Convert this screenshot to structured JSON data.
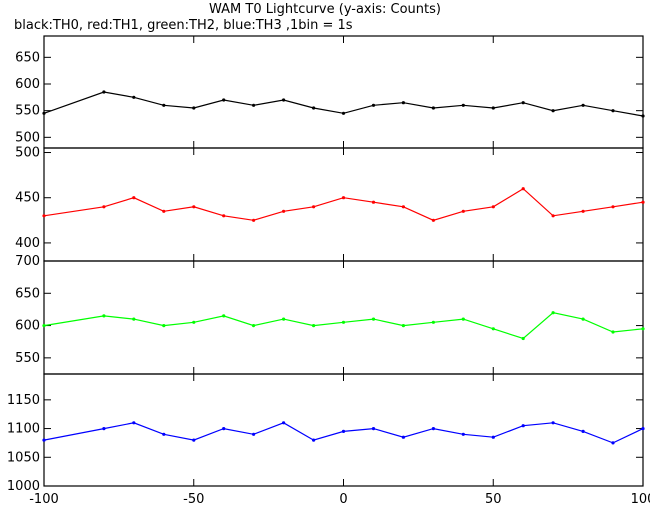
{
  "chart_data": {
    "type": "line",
    "title": "WAM T0 Lightcurve (y-axis: Counts)",
    "subtitle": "black:TH0, red:TH1, green:TH2, blue:TH3 ,1bin = 1s",
    "x_range": [
      -100,
      100
    ],
    "x_ticks": [
      -100,
      -50,
      0,
      50,
      100
    ],
    "series": [
      {
        "color": "#000000",
        "ylim": [
          480,
          690
        ],
        "y_ticks": [
          500,
          550,
          600,
          650
        ],
        "x": [
          -100,
          -80,
          -70,
          -60,
          -50,
          -40,
          -30,
          -20,
          -10,
          0,
          10,
          20,
          30,
          40,
          50,
          60,
          70,
          80,
          90,
          100
        ],
        "values": [
          545,
          585,
          575,
          560,
          555,
          570,
          560,
          570,
          555,
          545,
          560,
          565,
          555,
          560,
          555,
          565,
          550,
          560,
          550,
          540
        ]
      },
      {
        "color": "#ff0000",
        "ylim": [
          380,
          505
        ],
        "y_ticks": [
          400,
          450,
          500
        ],
        "x": [
          -100,
          -80,
          -70,
          -60,
          -50,
          -40,
          -30,
          -20,
          -10,
          0,
          10,
          20,
          30,
          40,
          50,
          60,
          70,
          80,
          90,
          100
        ],
        "values": [
          430,
          440,
          450,
          435,
          440,
          430,
          425,
          435,
          440,
          450,
          445,
          440,
          425,
          435,
          440,
          460,
          430,
          435,
          440,
          445
        ]
      },
      {
        "color": "#00ff00",
        "ylim": [
          525,
          700
        ],
        "y_ticks": [
          550,
          600,
          650,
          700
        ],
        "x": [
          -100,
          -80,
          -70,
          -60,
          -50,
          -40,
          -30,
          -20,
          -10,
          0,
          10,
          20,
          30,
          40,
          50,
          60,
          70,
          80,
          90,
          100
        ],
        "values": [
          600,
          615,
          610,
          600,
          605,
          615,
          600,
          610,
          600,
          605,
          610,
          600,
          605,
          610,
          595,
          580,
          620,
          610,
          590,
          595
        ]
      },
      {
        "color": "#0000ff",
        "ylim": [
          1000,
          1195
        ],
        "y_ticks": [
          1000,
          1050,
          1100,
          1150
        ],
        "x": [
          -100,
          -80,
          -70,
          -60,
          -50,
          -40,
          -30,
          -20,
          -10,
          0,
          10,
          20,
          30,
          40,
          50,
          60,
          70,
          80,
          90,
          100
        ],
        "values": [
          1080,
          1100,
          1110,
          1090,
          1080,
          1100,
          1090,
          1110,
          1080,
          1095,
          1100,
          1085,
          1100,
          1090,
          1085,
          1105,
          1110,
          1095,
          1075,
          1100
        ]
      }
    ]
  }
}
